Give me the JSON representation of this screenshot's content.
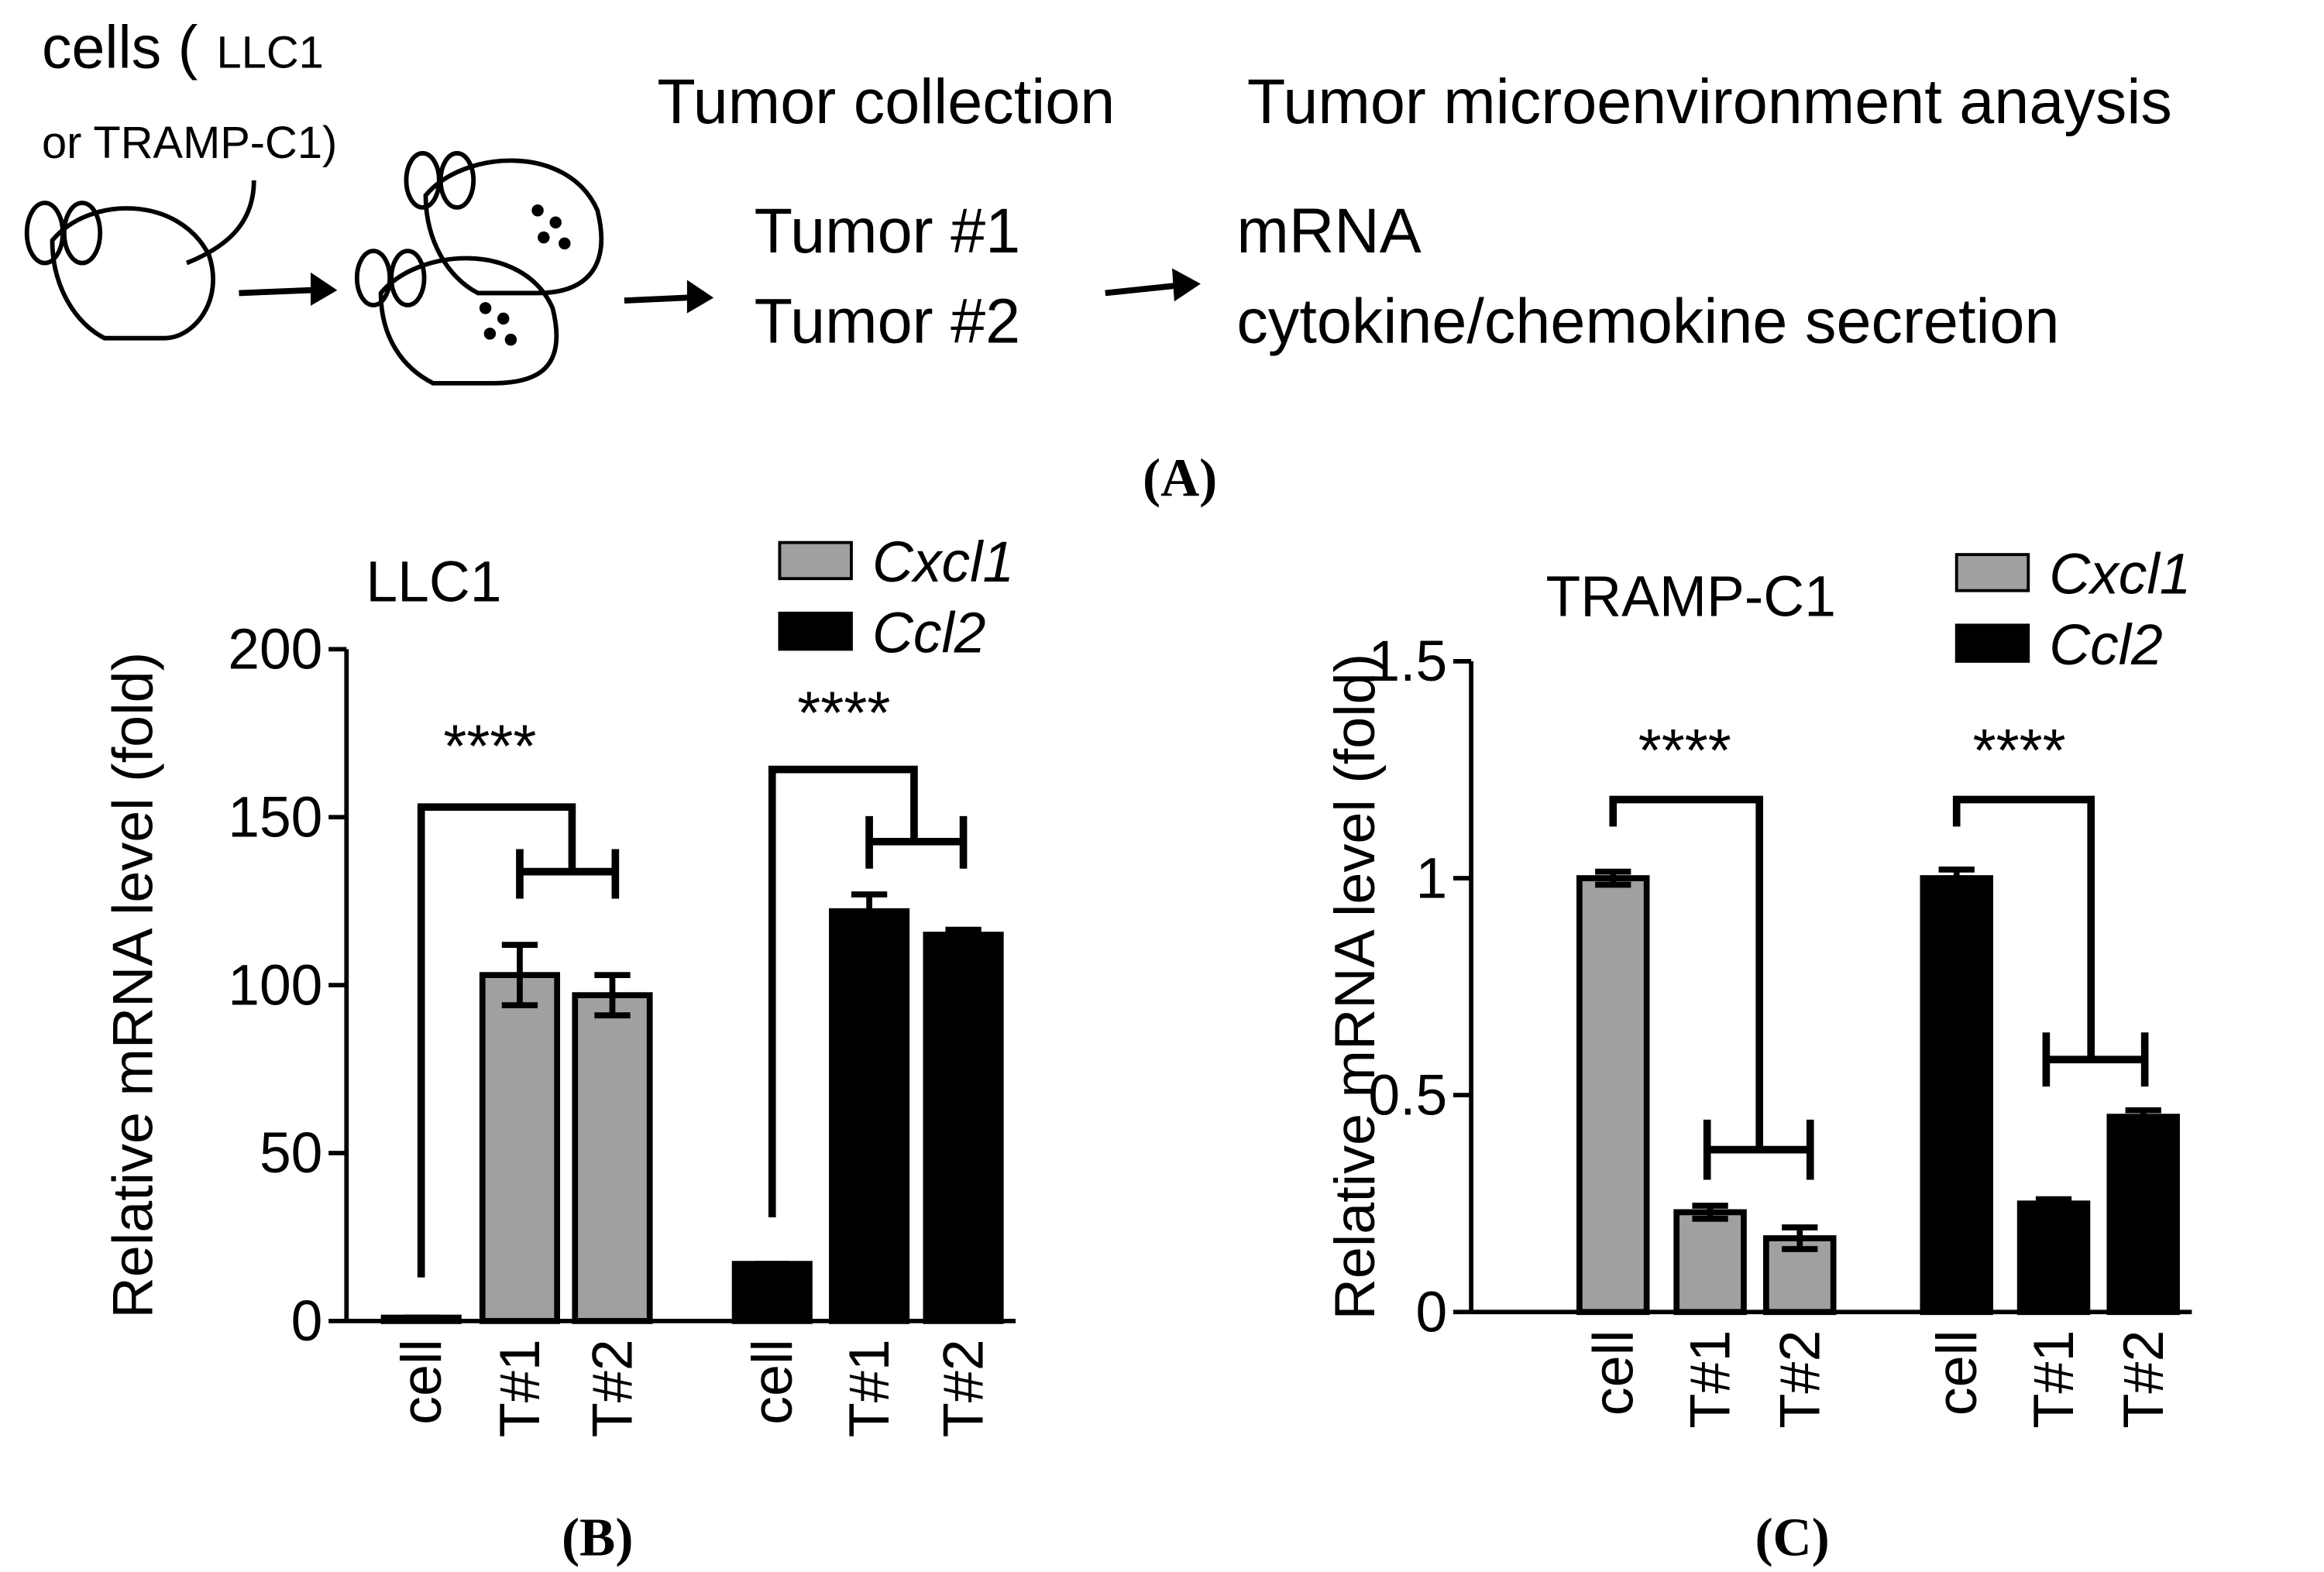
{
  "panel_a": {
    "cells_label": [
      "cells (",
      "LLC1",
      "or TRAMP-C1)"
    ],
    "step2": "Tumor collection",
    "step3": "Tumor microenvironment anaysis",
    "tumors": [
      "Tumor #1",
      "Tumor #2"
    ],
    "analyses": [
      "mRNA",
      "cytokine/chemokine secretion"
    ]
  },
  "panel_labels": [
    "(A)",
    "(B)",
    "(C)"
  ],
  "chart_data": [
    {
      "type": "bar",
      "title": "LLC1",
      "y_label": "Relative mRNA level (fold)",
      "categories": [
        "cell",
        "T#1",
        "T#2"
      ],
      "series": [
        {
          "name": "Cxcl1",
          "color": "#a0a0a0",
          "values": [
            1,
            103,
            97
          ],
          "errors": [
            0,
            9,
            6
          ]
        },
        {
          "name": "Ccl2",
          "color": "#000000",
          "values": [
            17,
            122,
            115
          ],
          "errors": [
            0,
            5,
            1.5
          ]
        }
      ],
      "ylim": [
        0,
        200
      ],
      "yticks": [
        0,
        50,
        100,
        150,
        200
      ],
      "annotations": [
        "****",
        "****"
      ]
    },
    {
      "type": "bar",
      "title": "TRAMP-C1",
      "y_label": "Relative mRNA level (fold)",
      "categories": [
        "cell",
        "T#1",
        "T#2"
      ],
      "series": [
        {
          "name": "Cxcl1",
          "color": "#a0a0a0",
          "values": [
            1,
            0.23,
            0.17
          ],
          "errors": [
            0.015,
            0.015,
            0.025
          ]
        },
        {
          "name": "Ccl2",
          "color": "#000000",
          "values": [
            1,
            0.25,
            0.45
          ],
          "errors": [
            0.02,
            0.01,
            0.015
          ]
        }
      ],
      "ylim": [
        0,
        1.5
      ],
      "yticks": [
        0,
        0.5,
        1,
        1.5
      ],
      "annotations": [
        "****",
        "****"
      ]
    }
  ]
}
